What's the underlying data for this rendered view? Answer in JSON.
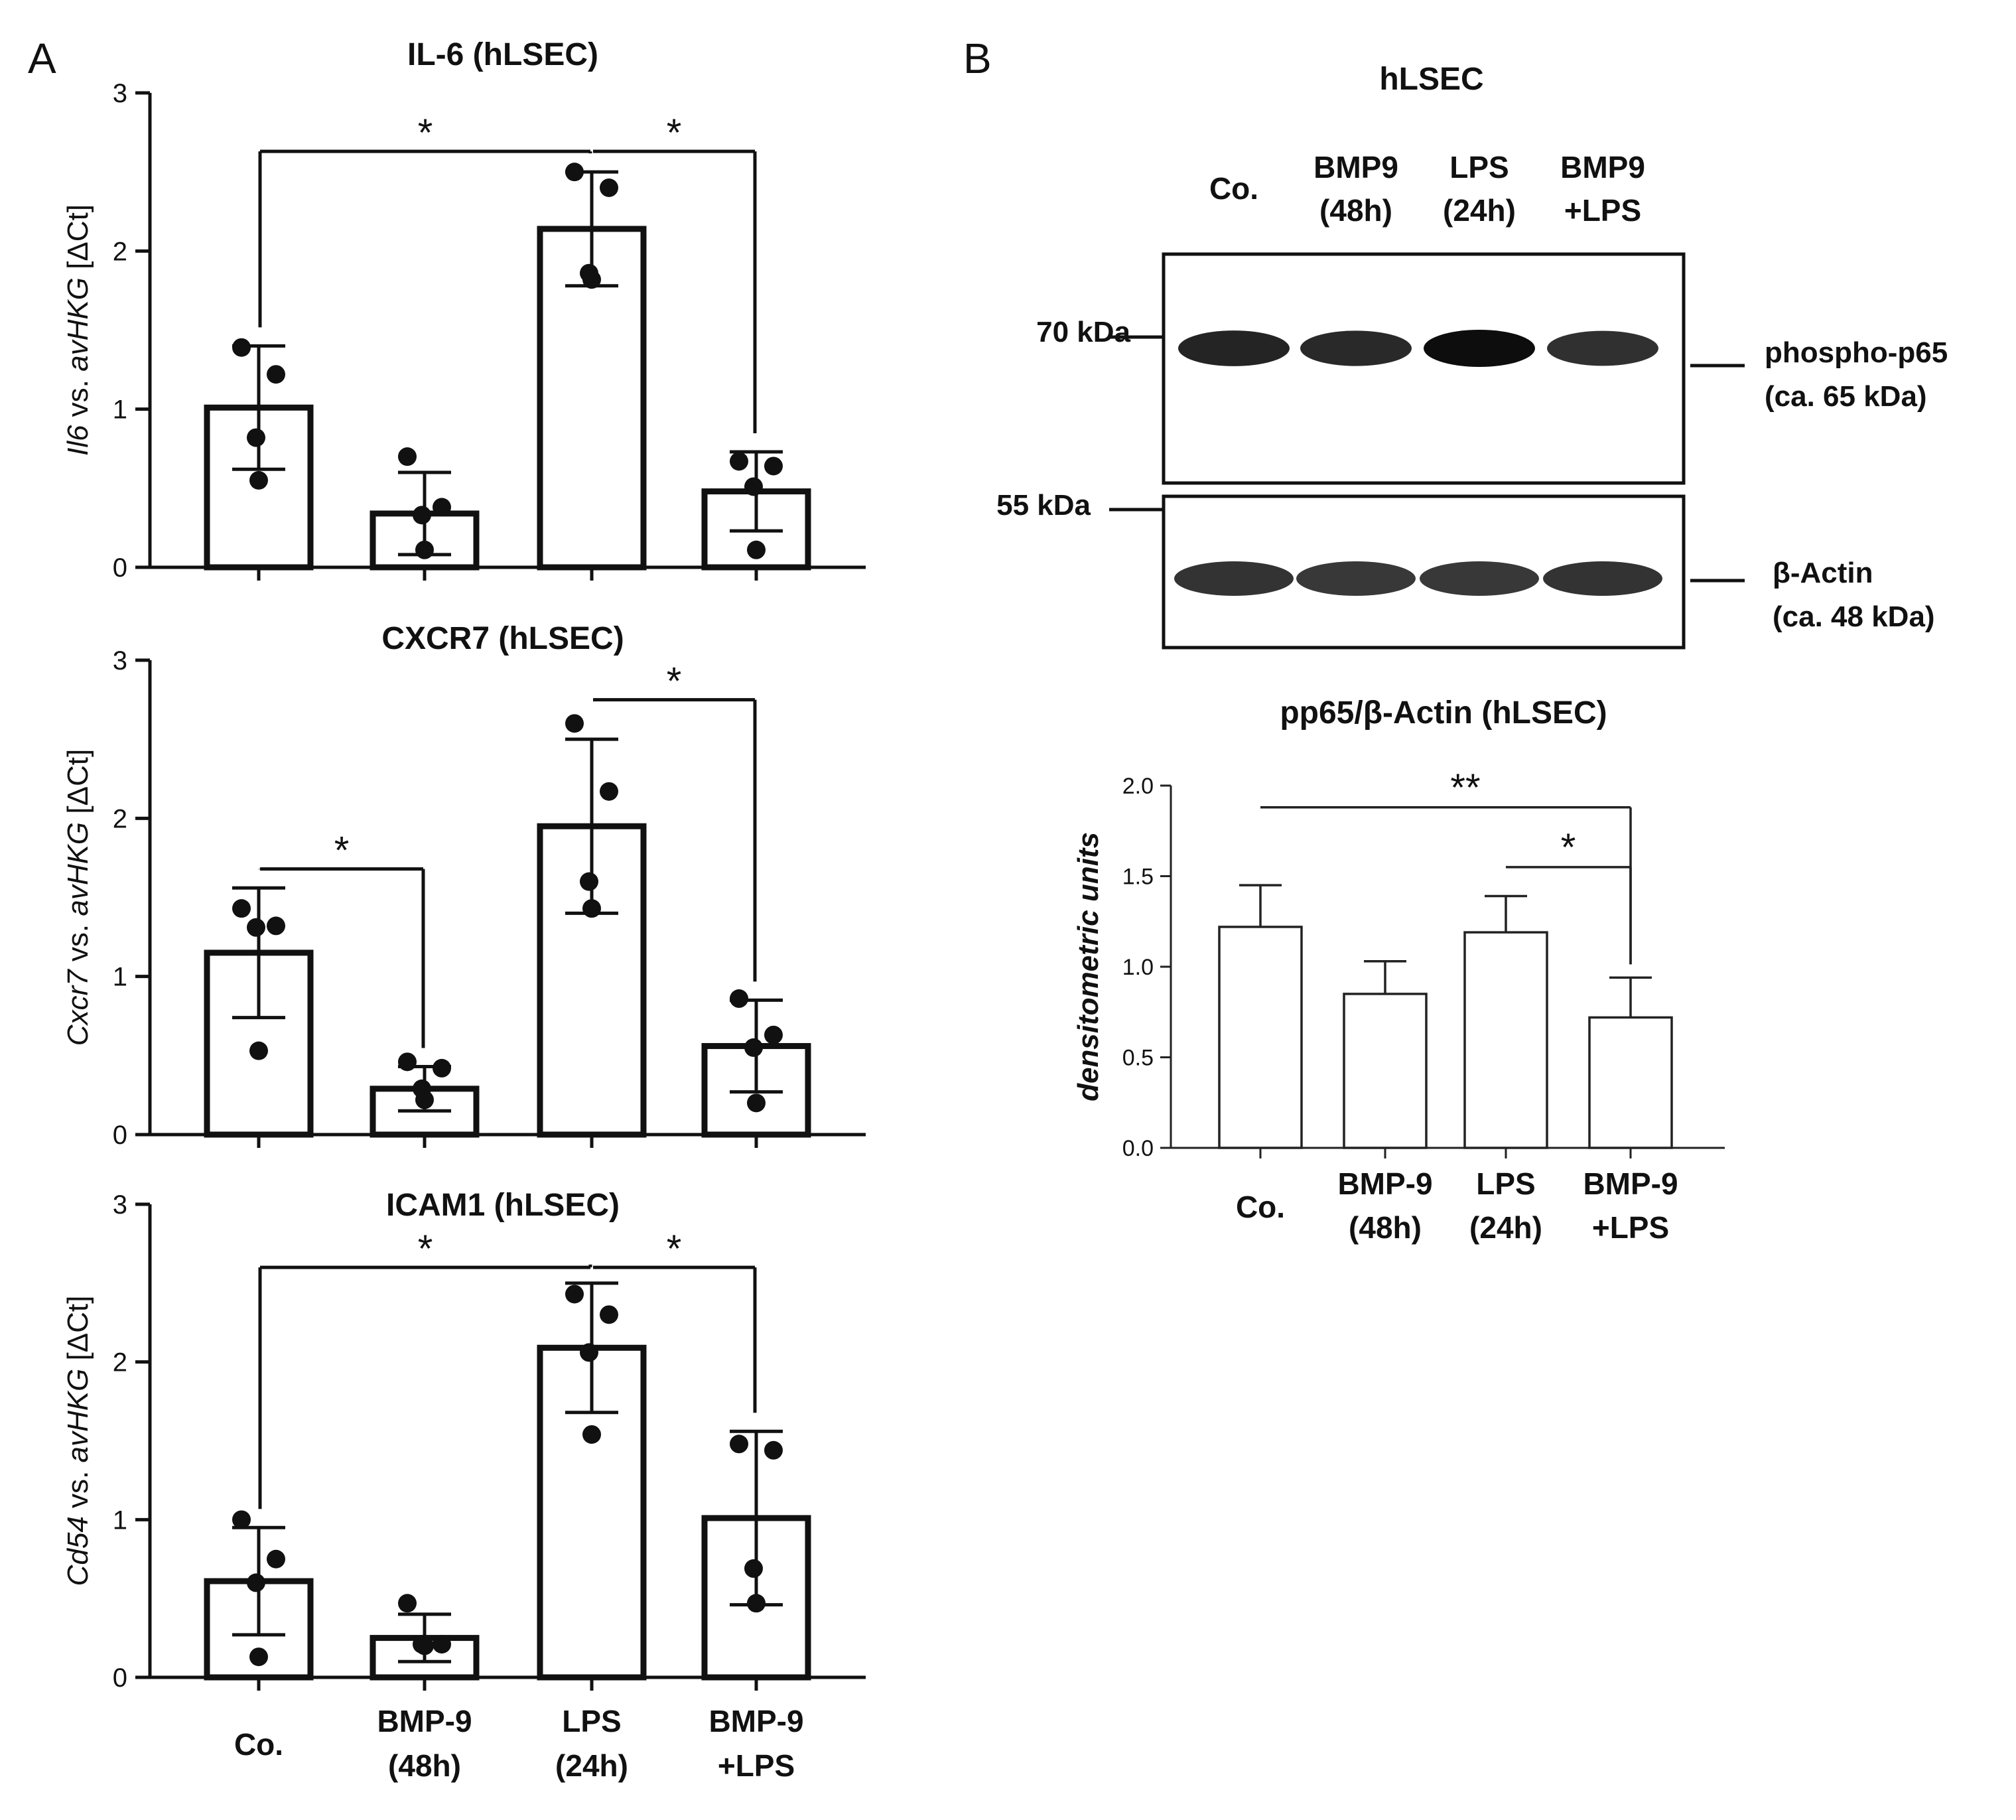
{
  "panel_a_letter": "A",
  "panel_b_letter": "B",
  "categories": [
    "Co.",
    [
      "BMP-9",
      "(48h)"
    ],
    [
      "LPS",
      "(24h)"
    ],
    [
      "BMP-9",
      "+LPS"
    ]
  ],
  "chart_data": [
    {
      "type": "bar",
      "title": "IL-6 (hLSEC)",
      "ylabel_italic": "Il6",
      "ylabel_rest": " vs. ",
      "ylabel_italic2": "avHKG",
      "ylabel_unit": " [ΔCt]",
      "ylim": [
        0,
        3
      ],
      "yticks": [
        "0",
        "1",
        "2",
        "3"
      ],
      "categories": [
        "Co.",
        "BMP-9 (48h)",
        "LPS (24h)",
        "BMP-9 +LPS"
      ],
      "values": [
        1.01,
        0.34,
        2.14,
        0.48
      ],
      "errors": [
        0.39,
        0.26,
        0.36,
        0.25
      ],
      "points": [
        [
          1.39,
          1.22,
          0.82,
          0.55
        ],
        [
          0.7,
          0.38,
          0.33,
          0.11
        ],
        [
          2.5,
          2.4,
          1.86,
          1.82
        ],
        [
          0.67,
          0.64,
          0.51,
          0.11
        ]
      ],
      "significance": [
        {
          "from": 0,
          "to": 2,
          "label": "*",
          "y": 2.63
        },
        {
          "from": 2,
          "to": 3,
          "label": "*",
          "y": 2.63
        }
      ]
    },
    {
      "type": "bar",
      "title": "CXCR7 (hLSEC)",
      "ylabel_italic": "Cxcr7",
      "ylabel_rest": " vs. ",
      "ylabel_italic2": "avHKG",
      "ylabel_unit": " [ΔCt]",
      "ylim": [
        0,
        3
      ],
      "yticks": [
        "0",
        "1",
        "2",
        "3"
      ],
      "categories": [
        "Co.",
        "BMP-9 (48h)",
        "LPS (24h)",
        "BMP-9 +LPS"
      ],
      "values": [
        1.15,
        0.29,
        1.95,
        0.56
      ],
      "errors": [
        0.41,
        0.14,
        0.55,
        0.29
      ],
      "points": [
        [
          1.43,
          1.32,
          1.31,
          0.53
        ],
        [
          0.46,
          0.42,
          0.29,
          0.22
        ],
        [
          2.6,
          2.17,
          1.6,
          1.43
        ],
        [
          0.86,
          0.63,
          0.55,
          0.2
        ]
      ],
      "significance": [
        {
          "from": 0,
          "to": 1,
          "label": "*",
          "y": 1.68
        },
        {
          "from": 2,
          "to": 3,
          "label": "*",
          "y": 2.75
        }
      ]
    },
    {
      "type": "bar",
      "title": "ICAM1 (hLSEC)",
      "ylabel_italic": "Cd54",
      "ylabel_rest": " vs. ",
      "ylabel_italic2": "avHKG",
      "ylabel_unit": " [ΔCt]",
      "ylim": [
        0,
        3
      ],
      "yticks": [
        "0",
        "1",
        "2",
        "3"
      ],
      "categories": [
        "Co.",
        "BMP-9 (48h)",
        "LPS (24h)",
        "BMP-9 +LPS"
      ],
      "values": [
        0.61,
        0.25,
        2.09,
        1.01
      ],
      "errors": [
        0.34,
        0.15,
        0.41,
        0.55
      ],
      "points": [
        [
          1.0,
          0.75,
          0.6,
          0.13
        ],
        [
          0.47,
          0.21,
          0.21,
          0.2
        ],
        [
          2.43,
          2.3,
          2.06,
          1.54
        ],
        [
          1.48,
          1.44,
          0.69,
          0.47
        ]
      ],
      "significance": [
        {
          "from": 0,
          "to": 2,
          "label": "*",
          "y": 2.6
        },
        {
          "from": 2,
          "to": 3,
          "label": "*",
          "y": 2.6
        }
      ]
    },
    {
      "type": "bar",
      "title": "pp65/β-Actin (hLSEC)",
      "ylabel_italic": "densitometric units",
      "ylim": [
        0,
        2.0
      ],
      "yticks": [
        "0.0",
        "0.5",
        "1.0",
        "1.5",
        "2.0"
      ],
      "categories": [
        "Co.",
        "BMP-9 (48h)",
        "LPS (24h)",
        "BMP-9 +LPS"
      ],
      "values": [
        1.22,
        0.85,
        1.19,
        0.72
      ],
      "errors": [
        0.23,
        0.18,
        0.2,
        0.22
      ],
      "significance": [
        {
          "from": 0,
          "to": 3,
          "label": "**",
          "y": 1.88
        },
        {
          "from": 2,
          "to": 3,
          "label": "*",
          "y": 1.55
        }
      ]
    }
  ],
  "blot": {
    "title": "hLSEC",
    "lanes": [
      [
        "Co."
      ],
      [
        "BMP9",
        "(48h)"
      ],
      [
        "LPS",
        "(24h)"
      ],
      [
        "BMP9",
        "+LPS"
      ]
    ],
    "marker_top": "70 kDa",
    "marker_bottom": "55 kDa",
    "band_top_label": [
      "phospho-p65",
      "(ca. 65 kDa)"
    ],
    "band_bottom_label": [
      "β-Actin",
      "(ca. 48 kDa)"
    ],
    "top_band_intensity": [
      0.82,
      0.78,
      1.0,
      0.72
    ],
    "bottom_band_intensity": [
      1.0,
      0.98,
      0.98,
      1.0
    ]
  }
}
